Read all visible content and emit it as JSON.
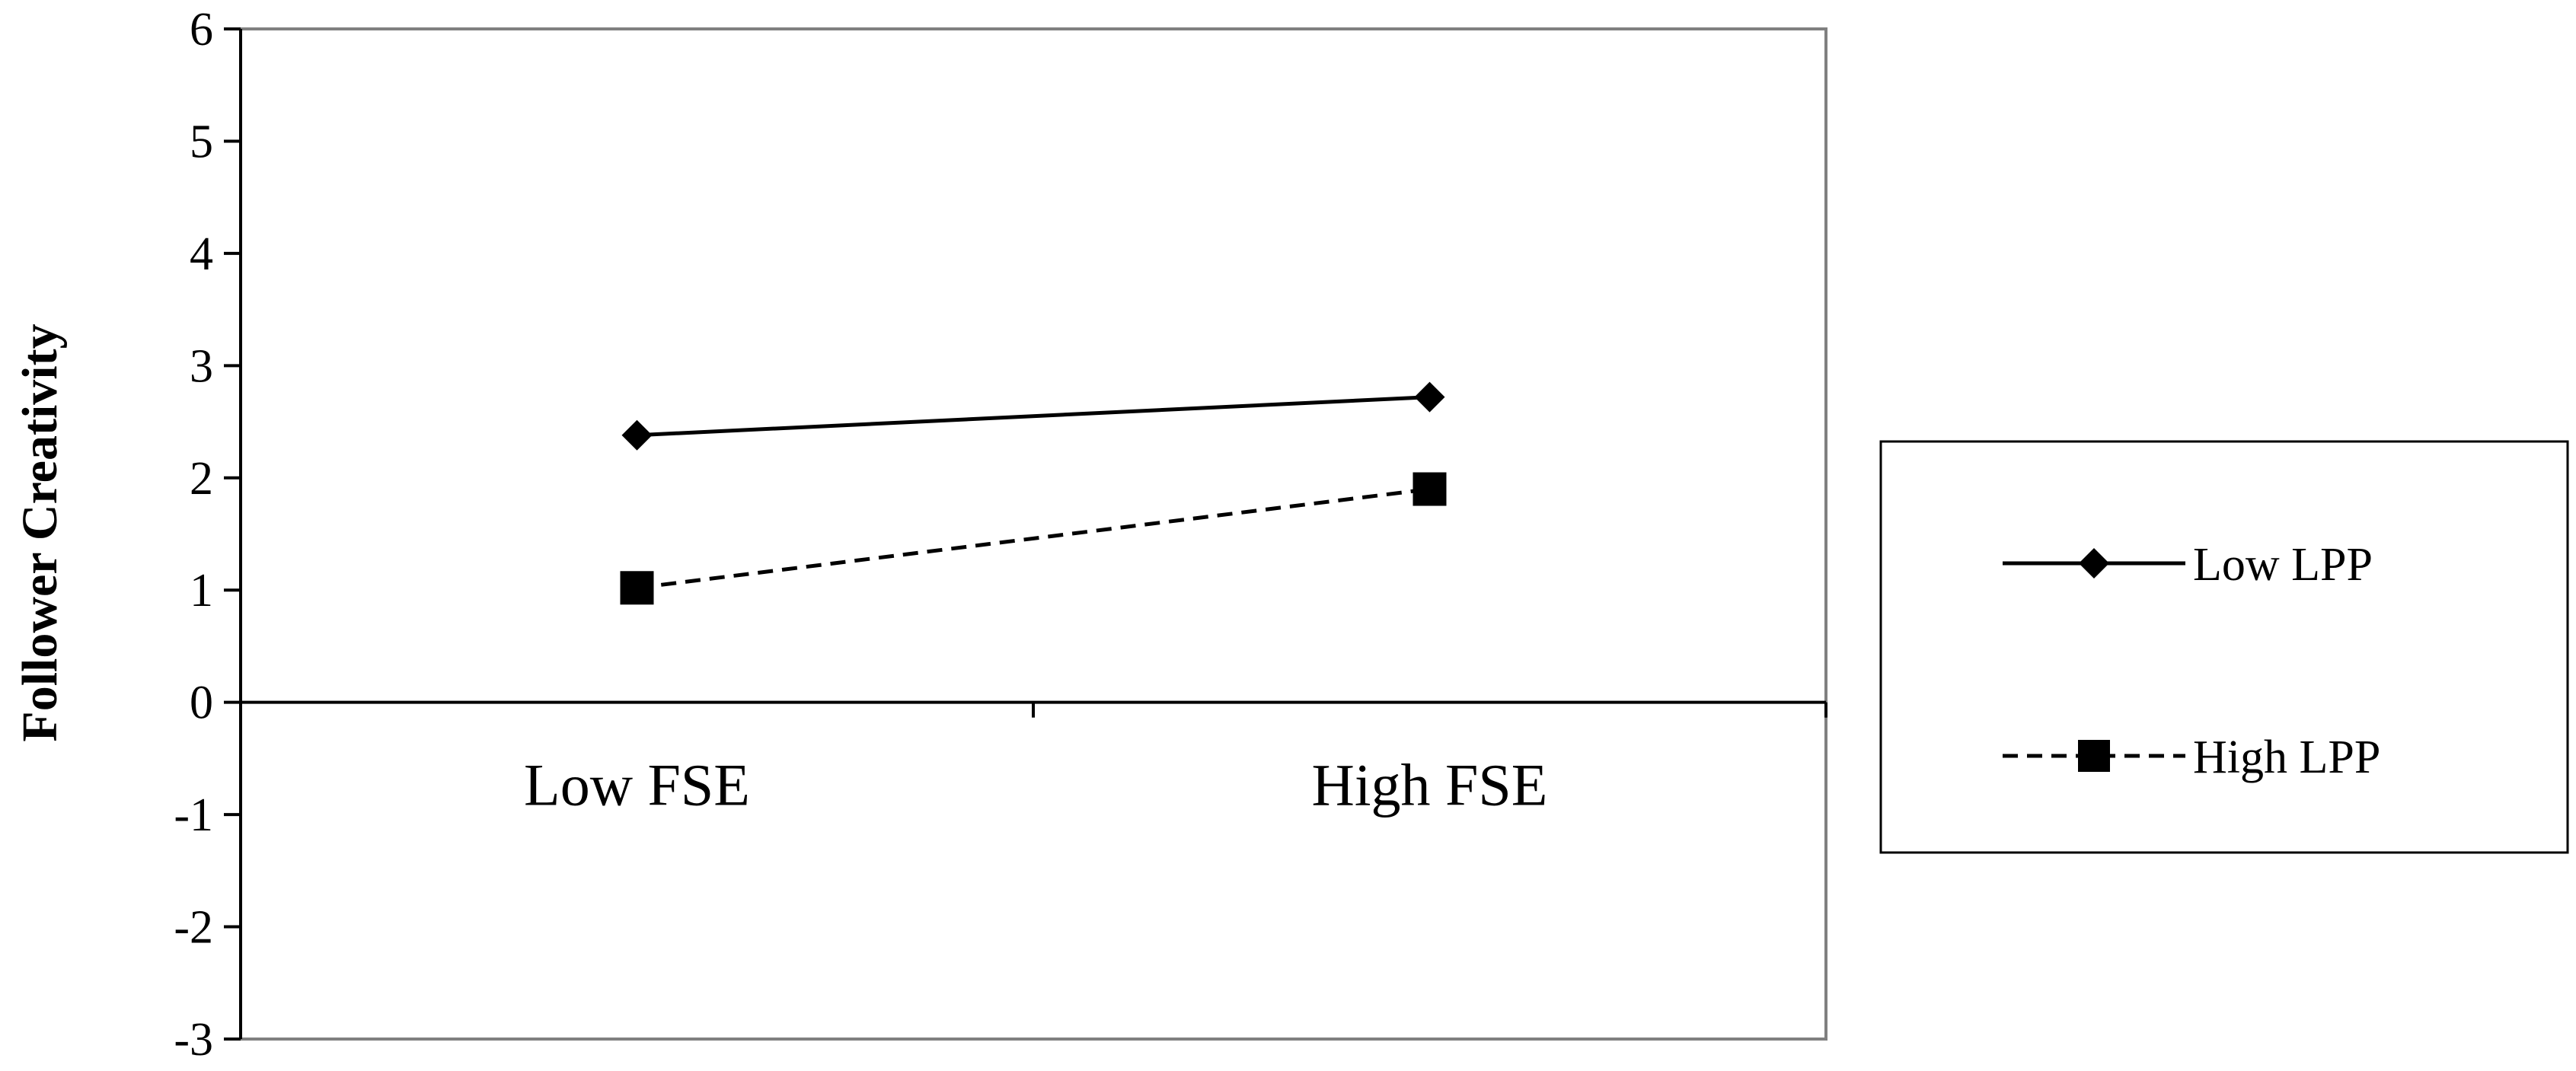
{
  "chart_data": {
    "type": "line",
    "categories": [
      "Low FSE",
      "High FSE"
    ],
    "ylabel": "Follower Creativity",
    "xlabel": "",
    "ylim": [
      -3,
      6
    ],
    "yticks": [
      6,
      5,
      4,
      3,
      2,
      1,
      0,
      -1,
      -2,
      -3
    ],
    "grid": false,
    "legend_position": "right",
    "series": [
      {
        "name": "Low LPP",
        "values": [
          2.38,
          2.72
        ],
        "marker": "diamond",
        "line_style": "solid",
        "color": "#000000"
      },
      {
        "name": "High LPP",
        "values": [
          1.02,
          1.9
        ],
        "marker": "square",
        "line_style": "dashed",
        "color": "#000000"
      }
    ]
  }
}
